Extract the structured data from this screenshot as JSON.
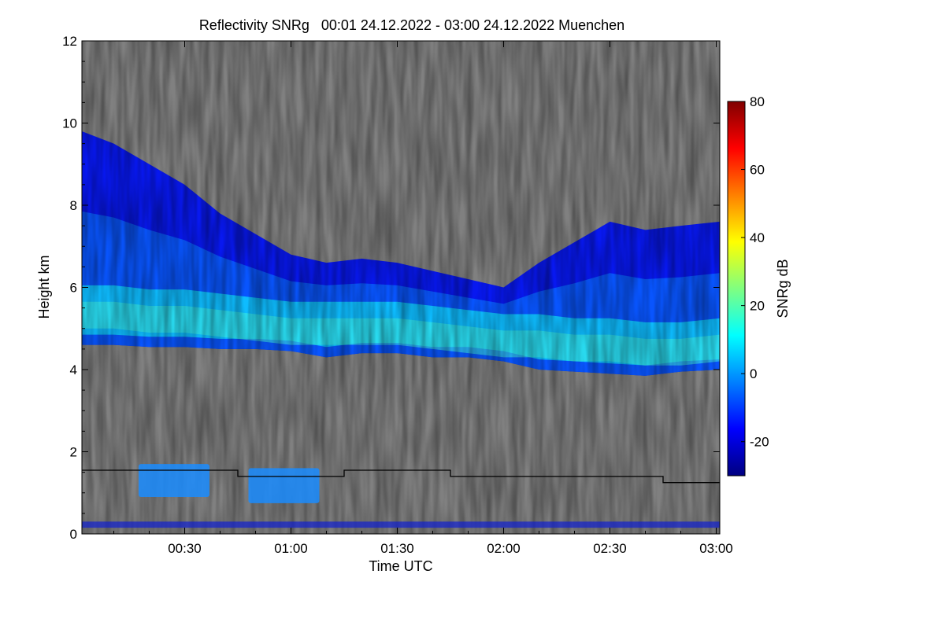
{
  "chart_data": {
    "type": "heatmap",
    "title": "Reflectivity SNRg   00:01 24.12.2022 - 03:00 24.12.2022 Muenchen",
    "xlabel": "Time UTC",
    "ylabel": "Height km",
    "colorbar_label": "SNRg dB",
    "x_range_minutes": [
      1,
      181
    ],
    "x_ticks": [
      {
        "minute": 30,
        "label": "00:30"
      },
      {
        "minute": 60,
        "label": "01:00"
      },
      {
        "minute": 90,
        "label": "01:30"
      },
      {
        "minute": 120,
        "label": "02:00"
      },
      {
        "minute": 150,
        "label": "02:30"
      },
      {
        "minute": 180,
        "label": "03:00"
      }
    ],
    "y_range_km": [
      0,
      12
    ],
    "y_ticks": [
      0,
      2,
      4,
      6,
      8,
      10,
      12
    ],
    "colorbar_range_db": [
      -30,
      80
    ],
    "colorbar_ticks": [
      -20,
      0,
      20,
      40,
      60,
      80
    ],
    "background_color": "#808080",
    "colormap": [
      "#000080",
      "#0000ff",
      "#0080ff",
      "#00ffff",
      "#80ff80",
      "#ffff00",
      "#ff8000",
      "#ff0000",
      "#800000"
    ],
    "cloud_layer": {
      "minutes": [
        1,
        10,
        20,
        30,
        40,
        50,
        60,
        70,
        80,
        90,
        100,
        110,
        120,
        130,
        140,
        150,
        160,
        170,
        181
      ],
      "top_km": [
        9.8,
        9.5,
        9.0,
        8.5,
        7.8,
        7.3,
        6.8,
        6.6,
        6.7,
        6.6,
        6.4,
        6.2,
        6.0,
        6.6,
        7.1,
        7.6,
        7.4,
        7.5,
        7.6
      ],
      "base_km": [
        4.6,
        4.6,
        4.55,
        4.55,
        4.5,
        4.5,
        4.45,
        4.3,
        4.4,
        4.4,
        4.3,
        4.3,
        4.2,
        4.0,
        3.95,
        3.9,
        3.85,
        3.95,
        4.0
      ],
      "core_km": [
        5.3,
        5.3,
        5.2,
        5.2,
        5.1,
        5.0,
        4.9,
        4.9,
        4.9,
        4.9,
        4.8,
        4.7,
        4.6,
        4.6,
        4.5,
        4.5,
        4.4,
        4.4,
        4.5
      ]
    },
    "low_echoes": [
      {
        "start_minute": 17,
        "end_minute": 37,
        "bottom_km": 0.9,
        "top_km": 1.7
      },
      {
        "start_minute": 48,
        "end_minute": 68,
        "bottom_km": 0.75,
        "top_km": 1.6
      }
    ],
    "boundary_line": {
      "minutes": [
        1,
        45,
        45,
        75,
        75,
        105,
        105,
        165,
        165,
        181
      ],
      "height_km": [
        1.55,
        1.55,
        1.4,
        1.4,
        1.55,
        1.55,
        1.4,
        1.4,
        1.25,
        1.25
      ]
    },
    "ground_clutter_km": [
      0.15,
      0.3
    ]
  }
}
